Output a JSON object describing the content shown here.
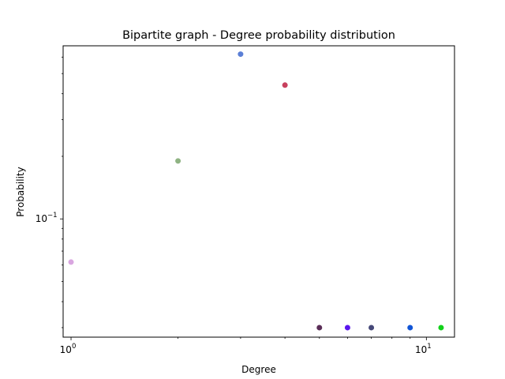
{
  "chart_data": {
    "type": "scatter",
    "title": "Bipartite graph - Degree probability distribution",
    "xlabel": "Degree",
    "ylabel": "Probability",
    "x_scale": "log",
    "y_scale": "log",
    "xlim": [
      0.95,
      12.0
    ],
    "ylim": [
      0.027,
      0.68
    ],
    "grid": false,
    "x_major_ticks": [
      {
        "value": 1,
        "label": "10",
        "exp": "0"
      },
      {
        "value": 10,
        "label": "10",
        "exp": "1"
      }
    ],
    "y_major_ticks": [
      {
        "value": 0.1,
        "label": "10",
        "exp": "−1"
      }
    ],
    "points": [
      {
        "x": 1,
        "y": 0.062,
        "color": "#d9a6e0"
      },
      {
        "x": 2,
        "y": 0.19,
        "color": "#8fb383"
      },
      {
        "x": 3,
        "y": 0.62,
        "color": "#5b7fd6"
      },
      {
        "x": 4,
        "y": 0.44,
        "color": "#c8405e"
      },
      {
        "x": 5,
        "y": 0.03,
        "color": "#5a2d57"
      },
      {
        "x": 6,
        "y": 0.03,
        "color": "#5a16ee"
      },
      {
        "x": 7,
        "y": 0.03,
        "color": "#454878"
      },
      {
        "x": 9,
        "y": 0.03,
        "color": "#1155d6"
      },
      {
        "x": 11,
        "y": 0.03,
        "color": "#12d11a"
      }
    ]
  }
}
